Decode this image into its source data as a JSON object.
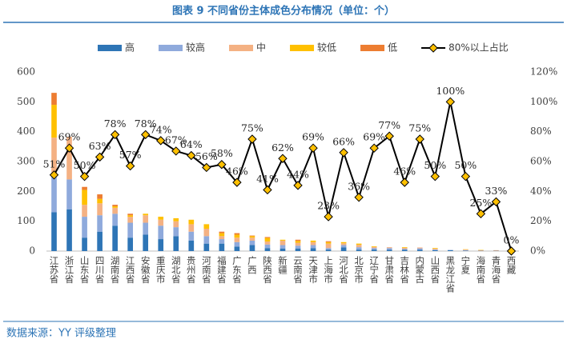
{
  "chart_data": {
    "type": "bar",
    "title": "图表 9 不同省份主体成色分布情况（单位：个）",
    "source": "数据来源：YY 评级整理",
    "categories": [
      "江苏省",
      "浙江省",
      "山东省",
      "四川省",
      "湖南省",
      "江西省",
      "安徽省",
      "重庆市",
      "湖北省",
      "贵州省",
      "河南省",
      "福建省",
      "广东省",
      "广西",
      "陕西省",
      "新疆",
      "云南省",
      "天津市",
      "上海市",
      "河北省",
      "北京市",
      "辽宁省",
      "甘肃省",
      "吉林省",
      "内蒙古",
      "山西省",
      "黑龙江省",
      "宁夏",
      "海南省",
      "青海省",
      "西藏"
    ],
    "series": [
      {
        "name": "高",
        "color": "#2e75b6",
        "values": [
          130,
          140,
          45,
          65,
          85,
          45,
          55,
          40,
          50,
          35,
          25,
          25,
          15,
          20,
          10,
          8,
          8,
          10,
          5,
          12,
          5,
          5,
          4,
          4,
          4,
          3,
          3,
          1,
          1,
          1,
          0
        ]
      },
      {
        "name": "较高",
        "color": "#8faadc",
        "values": [
          120,
          100,
          70,
          55,
          40,
          50,
          40,
          45,
          30,
          30,
          25,
          15,
          15,
          15,
          12,
          12,
          10,
          10,
          5,
          8,
          8,
          5,
          6,
          3,
          5,
          2,
          1,
          2,
          0,
          0,
          0
        ]
      },
      {
        "name": "中",
        "color": "#f4b183",
        "values": [
          130,
          143,
          40,
          40,
          20,
          20,
          25,
          20,
          20,
          25,
          25,
          10,
          15,
          10,
          10,
          15,
          10,
          10,
          15,
          6,
          8,
          4,
          3,
          4,
          3,
          3,
          0,
          2,
          2,
          2,
          1
        ]
      },
      {
        "name": "较低",
        "color": "#ffc000",
        "values": [
          110,
          0,
          50,
          15,
          5,
          5,
          5,
          10,
          10,
          15,
          15,
          10,
          10,
          5,
          12,
          3,
          6,
          5,
          5,
          4,
          4,
          2,
          0,
          2,
          0,
          2,
          0,
          1,
          1,
          0,
          0
        ]
      },
      {
        "name": "低",
        "color": "#ed7d31",
        "values": [
          40,
          0,
          10,
          15,
          5,
          5,
          0,
          0,
          0,
          0,
          0,
          5,
          5,
          2,
          3,
          0,
          4,
          0,
          3,
          0,
          0,
          0,
          0,
          0,
          0,
          0,
          0,
          0,
          0,
          0,
          0
        ]
      },
      {
        "name": "80%以上占比",
        "color": "#000000",
        "marker_color": "#ffc000",
        "axis": "y2",
        "values": [
          51,
          69,
          50,
          63,
          78,
          57,
          78,
          74,
          67,
          64,
          56,
          58,
          46,
          75,
          41,
          62,
          44,
          69,
          23,
          66,
          36,
          69,
          77,
          46,
          75,
          50,
          100,
          50,
          25,
          33,
          0
        ],
        "value_labels": [
          "51%",
          "69%",
          "50%",
          "63%",
          "78%",
          "57%",
          "78%",
          "74%",
          "67%",
          "64%",
          "56%",
          "58%",
          "46%",
          "75%",
          "41%",
          "62%",
          "44%",
          "69%",
          "23%",
          "66%",
          "36%",
          "69%",
          "77%",
          "46%",
          "75%",
          "50%",
          "100%",
          "50%",
          "25%",
          "33%",
          "0%"
        ]
      }
    ],
    "ylim": [
      0,
      600
    ],
    "yticks": [
      0,
      100,
      200,
      300,
      400,
      500,
      600
    ],
    "y2lim": [
      0,
      120
    ],
    "y2ticks": [
      {
        "value": 0,
        "label": "0%"
      },
      {
        "value": 20,
        "label": "20%"
      },
      {
        "value": 40,
        "label": "40%"
      },
      {
        "value": 60,
        "label": "60%"
      },
      {
        "value": 80,
        "label": "80%"
      },
      {
        "value": 100,
        "label": "100%"
      },
      {
        "value": 120,
        "label": "120%"
      }
    ],
    "grid": false
  }
}
